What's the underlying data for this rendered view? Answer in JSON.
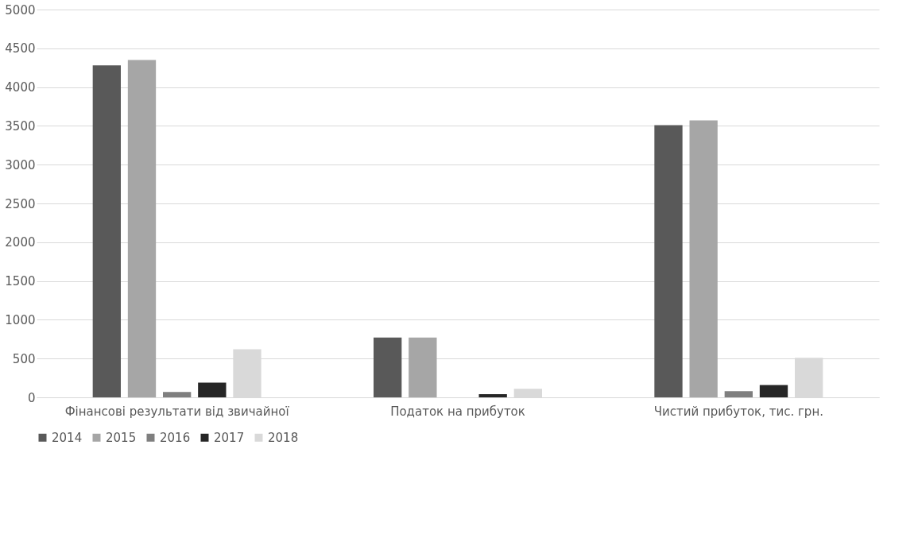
{
  "chart_data": {
    "type": "bar",
    "categories": [
      "Фінансові результати від звичайної",
      "Податок на прибуток",
      "Чистий прибуток, тис. грн."
    ],
    "series": [
      {
        "name": "2014",
        "color": "#595959",
        "values": [
          4280,
          770,
          3510
        ]
      },
      {
        "name": "2015",
        "color": "#a6a6a6",
        "values": [
          4350,
          770,
          3570
        ]
      },
      {
        "name": "2016",
        "color": "#7f7f7f",
        "values": [
          70,
          null,
          80
        ]
      },
      {
        "name": "2017",
        "color": "#262626",
        "values": [
          190,
          40,
          160
        ]
      },
      {
        "name": "2018",
        "color": "#d9d9d9",
        "values": [
          620,
          110,
          510
        ]
      }
    ],
    "ylim": [
      0,
      5000
    ],
    "yticks": [
      0,
      500,
      1000,
      1500,
      2000,
      2500,
      3000,
      3500,
      4000,
      4500,
      5000
    ],
    "grid": "y",
    "legend": "bottom"
  }
}
